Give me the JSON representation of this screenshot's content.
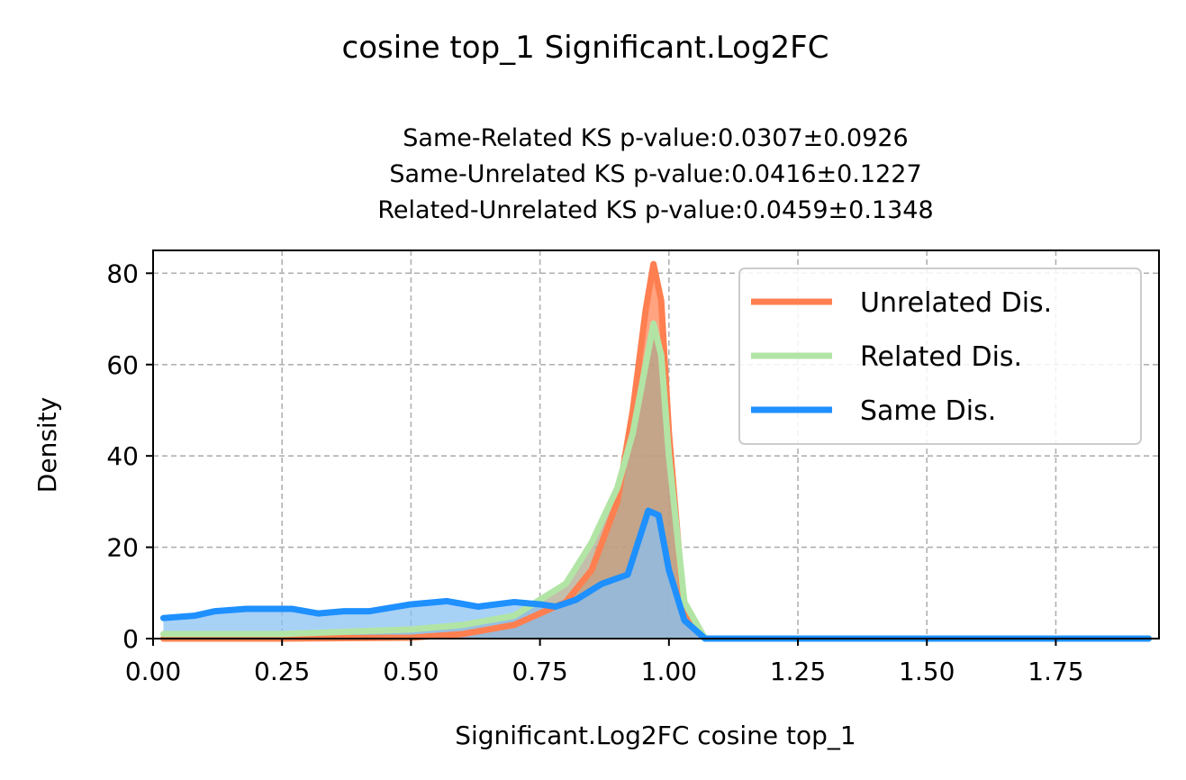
{
  "chart_data": {
    "type": "area",
    "suptitle": "cosine top_1 Significant.Log2FC",
    "title_lines": [
      "Same-Related KS p-value:0.0307±0.0926",
      "Same-Unrelated KS p-value:0.0416±0.1227",
      "Related-Unrelated KS p-value:0.0459±0.1348"
    ],
    "xlabel": "Significant.Log2FC cosine top_1",
    "ylabel": "Density",
    "xlim": [
      0.0,
      1.95
    ],
    "ylim": [
      0,
      85
    ],
    "xticks": [
      0.0,
      0.25,
      0.5,
      0.75,
      1.0,
      1.25,
      1.5,
      1.75
    ],
    "xtick_labels": [
      "0.00",
      "0.25",
      "0.50",
      "0.75",
      "1.00",
      "1.25",
      "1.50",
      "1.75"
    ],
    "yticks": [
      0,
      20,
      40,
      60,
      80
    ],
    "ytick_labels": [
      "0",
      "20",
      "40",
      "60",
      "80"
    ],
    "grid": true,
    "legend_position": "upper-right",
    "series": [
      {
        "name": "Unrelated Dis.",
        "color": "#FF7F50",
        "fill_color": "#FF7F50",
        "points": [
          [
            0.02,
            0
          ],
          [
            0.25,
            0
          ],
          [
            0.5,
            0.2
          ],
          [
            0.6,
            1
          ],
          [
            0.7,
            3
          ],
          [
            0.8,
            8
          ],
          [
            0.85,
            15
          ],
          [
            0.9,
            30
          ],
          [
            0.93,
            50
          ],
          [
            0.955,
            72
          ],
          [
            0.97,
            82
          ],
          [
            0.985,
            74
          ],
          [
            1.0,
            45
          ],
          [
            1.03,
            5
          ],
          [
            1.07,
            0
          ],
          [
            1.93,
            0
          ]
        ]
      },
      {
        "name": "Related Dis.",
        "color": "#B2E5A5",
        "fill_color": "#ADA68C",
        "points": [
          [
            0.02,
            1
          ],
          [
            0.25,
            1
          ],
          [
            0.5,
            2
          ],
          [
            0.6,
            3
          ],
          [
            0.7,
            5
          ],
          [
            0.8,
            12
          ],
          [
            0.85,
            21
          ],
          [
            0.9,
            33
          ],
          [
            0.93,
            45
          ],
          [
            0.97,
            69
          ],
          [
            0.985,
            62
          ],
          [
            1.0,
            40
          ],
          [
            1.03,
            8
          ],
          [
            1.07,
            0
          ],
          [
            1.93,
            0
          ]
        ]
      },
      {
        "name": "Same Dis.",
        "color": "#1E90FF",
        "fill_color": "#87BFF2",
        "points": [
          [
            0.02,
            4.5
          ],
          [
            0.08,
            5
          ],
          [
            0.12,
            6
          ],
          [
            0.18,
            6.5
          ],
          [
            0.27,
            6.5
          ],
          [
            0.32,
            5.5
          ],
          [
            0.37,
            6
          ],
          [
            0.42,
            6
          ],
          [
            0.5,
            7.5
          ],
          [
            0.57,
            8.2
          ],
          [
            0.63,
            7
          ],
          [
            0.7,
            8
          ],
          [
            0.75,
            7.5
          ],
          [
            0.78,
            7
          ],
          [
            0.82,
            8.5
          ],
          [
            0.87,
            12
          ],
          [
            0.92,
            14
          ],
          [
            0.96,
            28
          ],
          [
            0.98,
            27
          ],
          [
            1.0,
            15
          ],
          [
            1.03,
            4
          ],
          [
            1.07,
            0
          ],
          [
            1.93,
            0
          ]
        ]
      }
    ]
  }
}
